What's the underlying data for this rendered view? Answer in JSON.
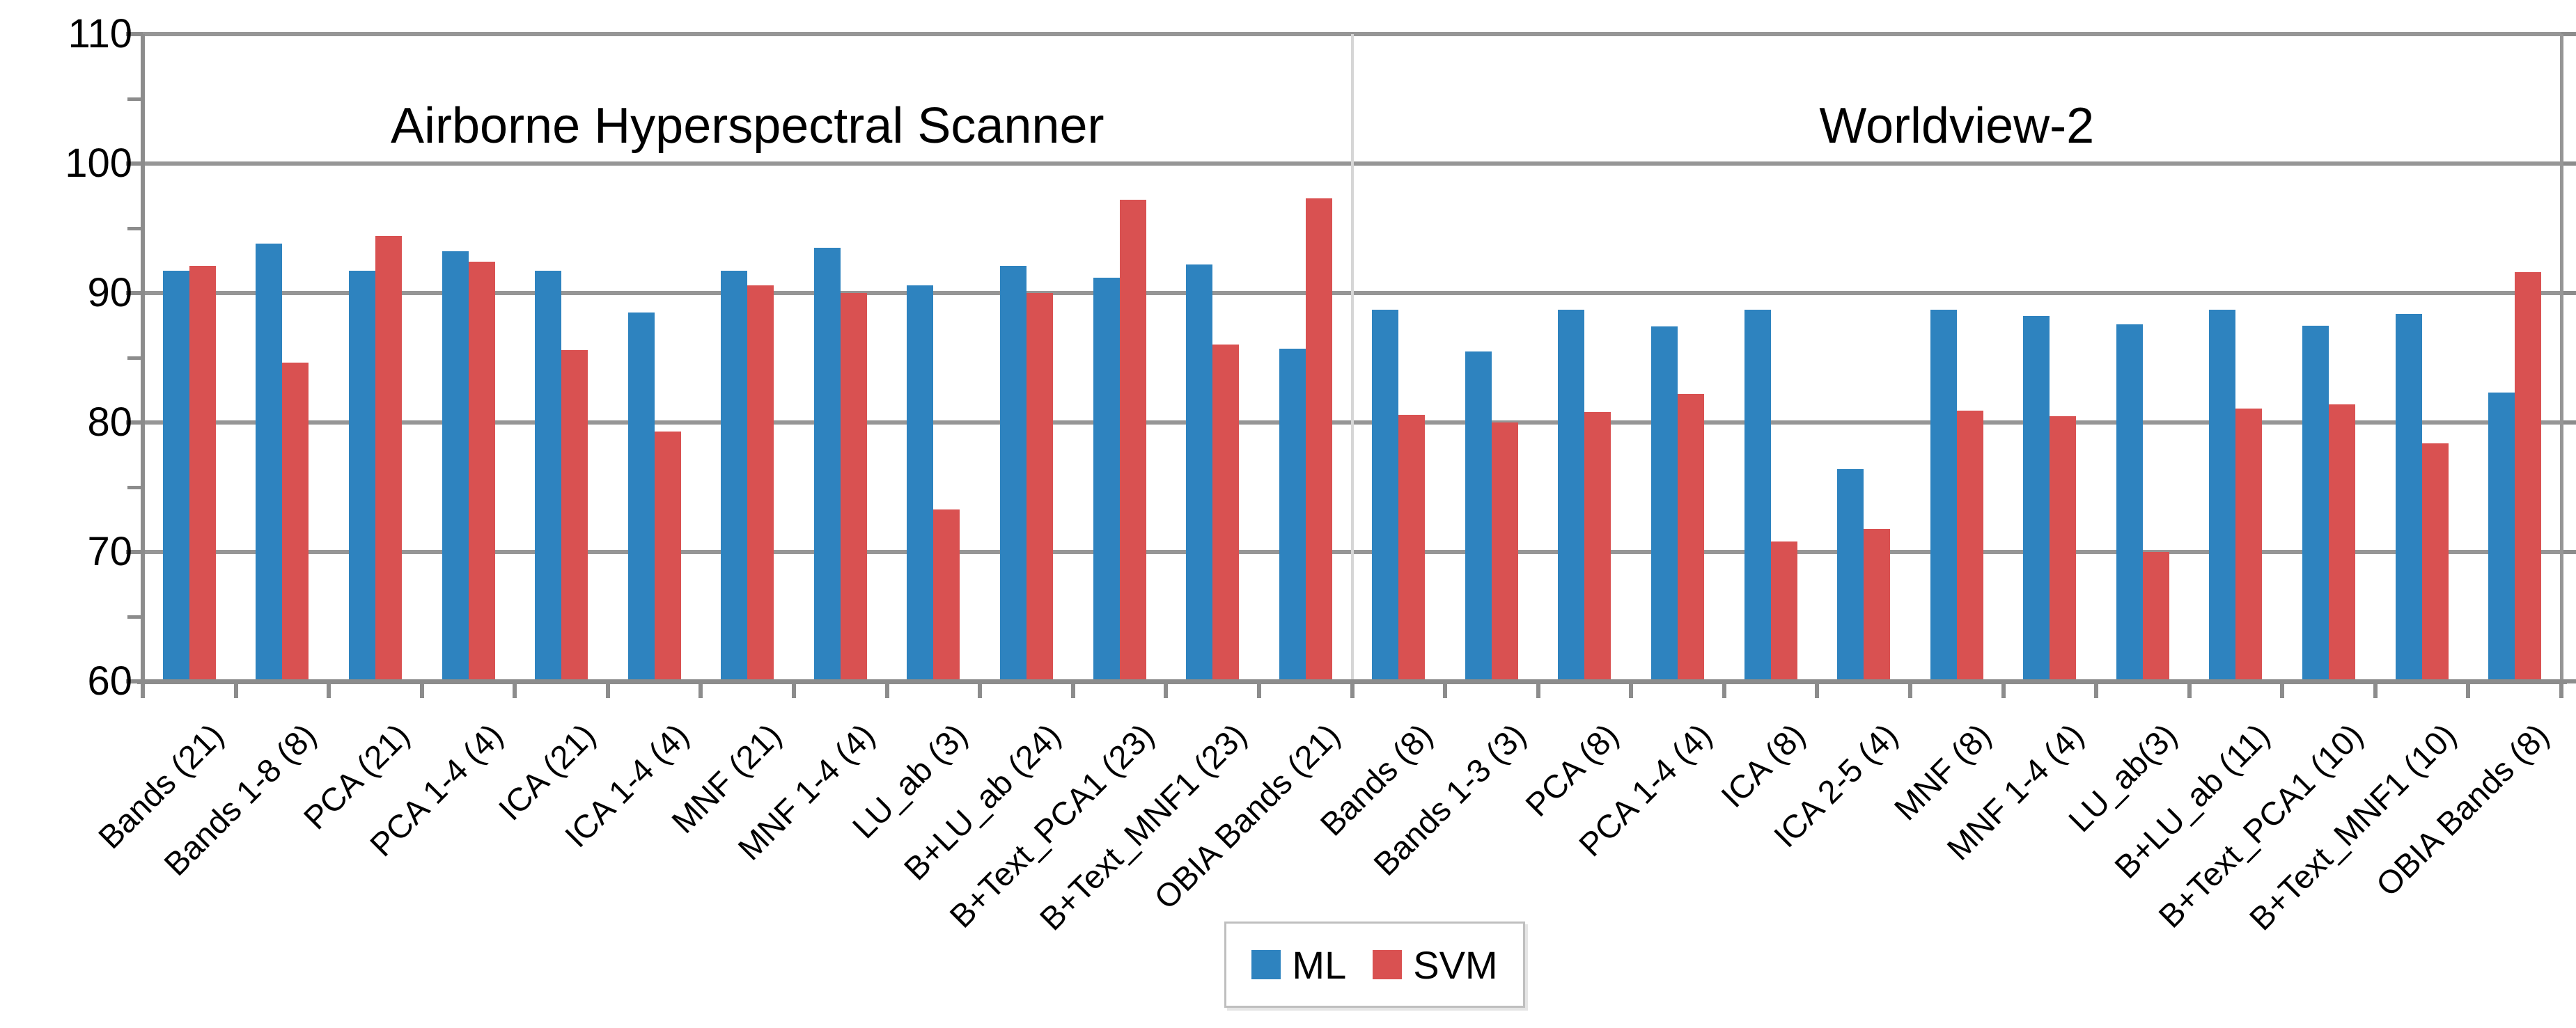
{
  "chart_data": {
    "type": "bar",
    "title": "",
    "ylabel": "",
    "xlabel": "",
    "ylim": [
      60,
      110
    ],
    "yticks": [
      60,
      70,
      80,
      90,
      100,
      110
    ],
    "grid": true,
    "legend_position": "bottom-center",
    "legend": [
      "ML",
      "SVM"
    ],
    "colors": {
      "ML": "#2E83BF",
      "SVM": "#D95151"
    },
    "sections": [
      {
        "label": "Airborne Hyperspectral Scanner",
        "categories": [
          "Bands (21)",
          "Bands 1-8 (8)",
          "PCA (21)",
          "PCA 1-4 (4)",
          "ICA (21)",
          "ICA 1-4 (4)",
          "MNF (21)",
          "MNF 1-4 (4)",
          "LU_ab (3)",
          "B+LU_ab (24)",
          "B+Text_PCA1 (23)",
          "B+Text_MNF1 (23)",
          "OBIA Bands (21)"
        ],
        "series": [
          {
            "name": "ML",
            "values": [
              91.7,
              93.8,
              91.7,
              93.2,
              91.7,
              88.5,
              91.7,
              93.5,
              90.6,
              92.1,
              91.2,
              92.2,
              85.7
            ]
          },
          {
            "name": "SVM",
            "values": [
              92.1,
              84.6,
              94.4,
              92.4,
              85.6,
              79.3,
              90.6,
              90.0,
              73.3,
              90.0,
              97.2,
              86.0,
              97.3
            ]
          }
        ]
      },
      {
        "label": "Worldview-2",
        "categories": [
          "Bands (8)",
          "Bands 1-3 (3)",
          "PCA (8)",
          "PCA 1-4 (4)",
          "ICA (8)",
          "ICA 2-5 (4)",
          "MNF (8)",
          "MNF 1-4 (4)",
          "LU_ab(3)",
          "B+LU_ab (11)",
          "B+Text_PCA1 (10)",
          "B+Text_MNF1 (10)",
          "OBIA Bands (8)"
        ],
        "series": [
          {
            "name": "ML",
            "values": [
              88.7,
              85.5,
              88.7,
              87.4,
              88.7,
              76.4,
              88.7,
              88.2,
              87.6,
              88.7,
              87.5,
              88.4,
              82.3
            ]
          },
          {
            "name": "SVM",
            "values": [
              80.6,
              80.0,
              80.8,
              82.2,
              70.8,
              71.8,
              80.9,
              80.5,
              70.0,
              81.1,
              81.4,
              78.4,
              91.6
            ]
          }
        ]
      }
    ]
  }
}
